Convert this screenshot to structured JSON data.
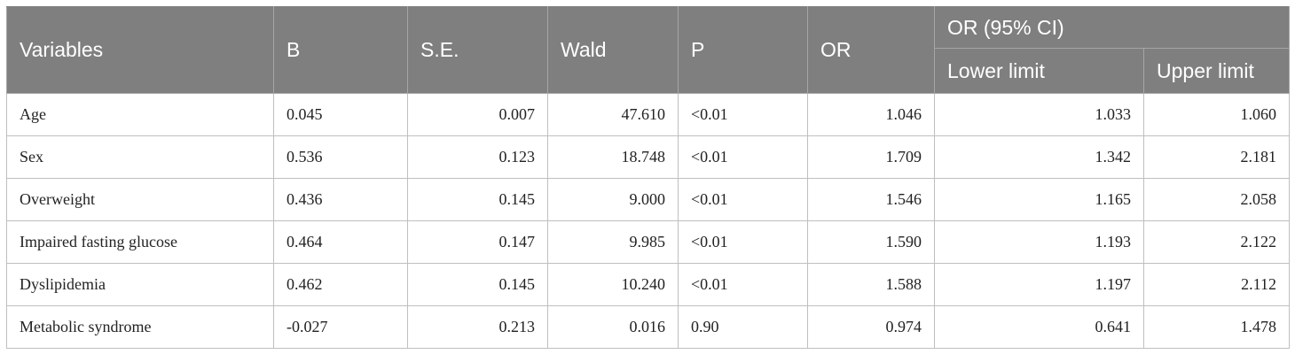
{
  "table": {
    "headers": {
      "variables": "Variables",
      "b": "B",
      "se": "S.E.",
      "wald": "Wald",
      "p": "P",
      "or": "OR",
      "or_ci": "OR (95% CI)",
      "lower_limit": "Lower limit",
      "upper_limit": "Upper limit"
    },
    "rows": [
      {
        "variable": "Age",
        "b": "0.045",
        "se": "0.007",
        "wald": "47.610",
        "p": "<0.01",
        "or": "1.046",
        "lower": "1.033",
        "upper": "1.060"
      },
      {
        "variable": "Sex",
        "b": "0.536",
        "se": "0.123",
        "wald": "18.748",
        "p": "<0.01",
        "or": "1.709",
        "lower": "1.342",
        "upper": "2.181"
      },
      {
        "variable": "Overweight",
        "b": "0.436",
        "se": "0.145",
        "wald": "9.000",
        "p": "<0.01",
        "or": "1.546",
        "lower": "1.165",
        "upper": "2.058"
      },
      {
        "variable": "Impaired fasting glucose",
        "b": "0.464",
        "se": "0.147",
        "wald": "9.985",
        "p": "<0.01",
        "or": "1.590",
        "lower": "1.193",
        "upper": "2.122"
      },
      {
        "variable": "Dyslipidemia",
        "b": "0.462",
        "se": "0.145",
        "wald": "10.240",
        "p": "<0.01",
        "or": "1.588",
        "lower": "1.197",
        "upper": "2.112"
      },
      {
        "variable": "Metabolic syndrome",
        "b": "-0.027",
        "se": "0.213",
        "wald": "0.016",
        "p": "0.90",
        "or": "0.974",
        "lower": "0.641",
        "upper": "1.478"
      }
    ]
  },
  "colors": {
    "header_bg": "#7f7f7f",
    "header_text": "#ffffff",
    "border": "#bfbfbf"
  }
}
